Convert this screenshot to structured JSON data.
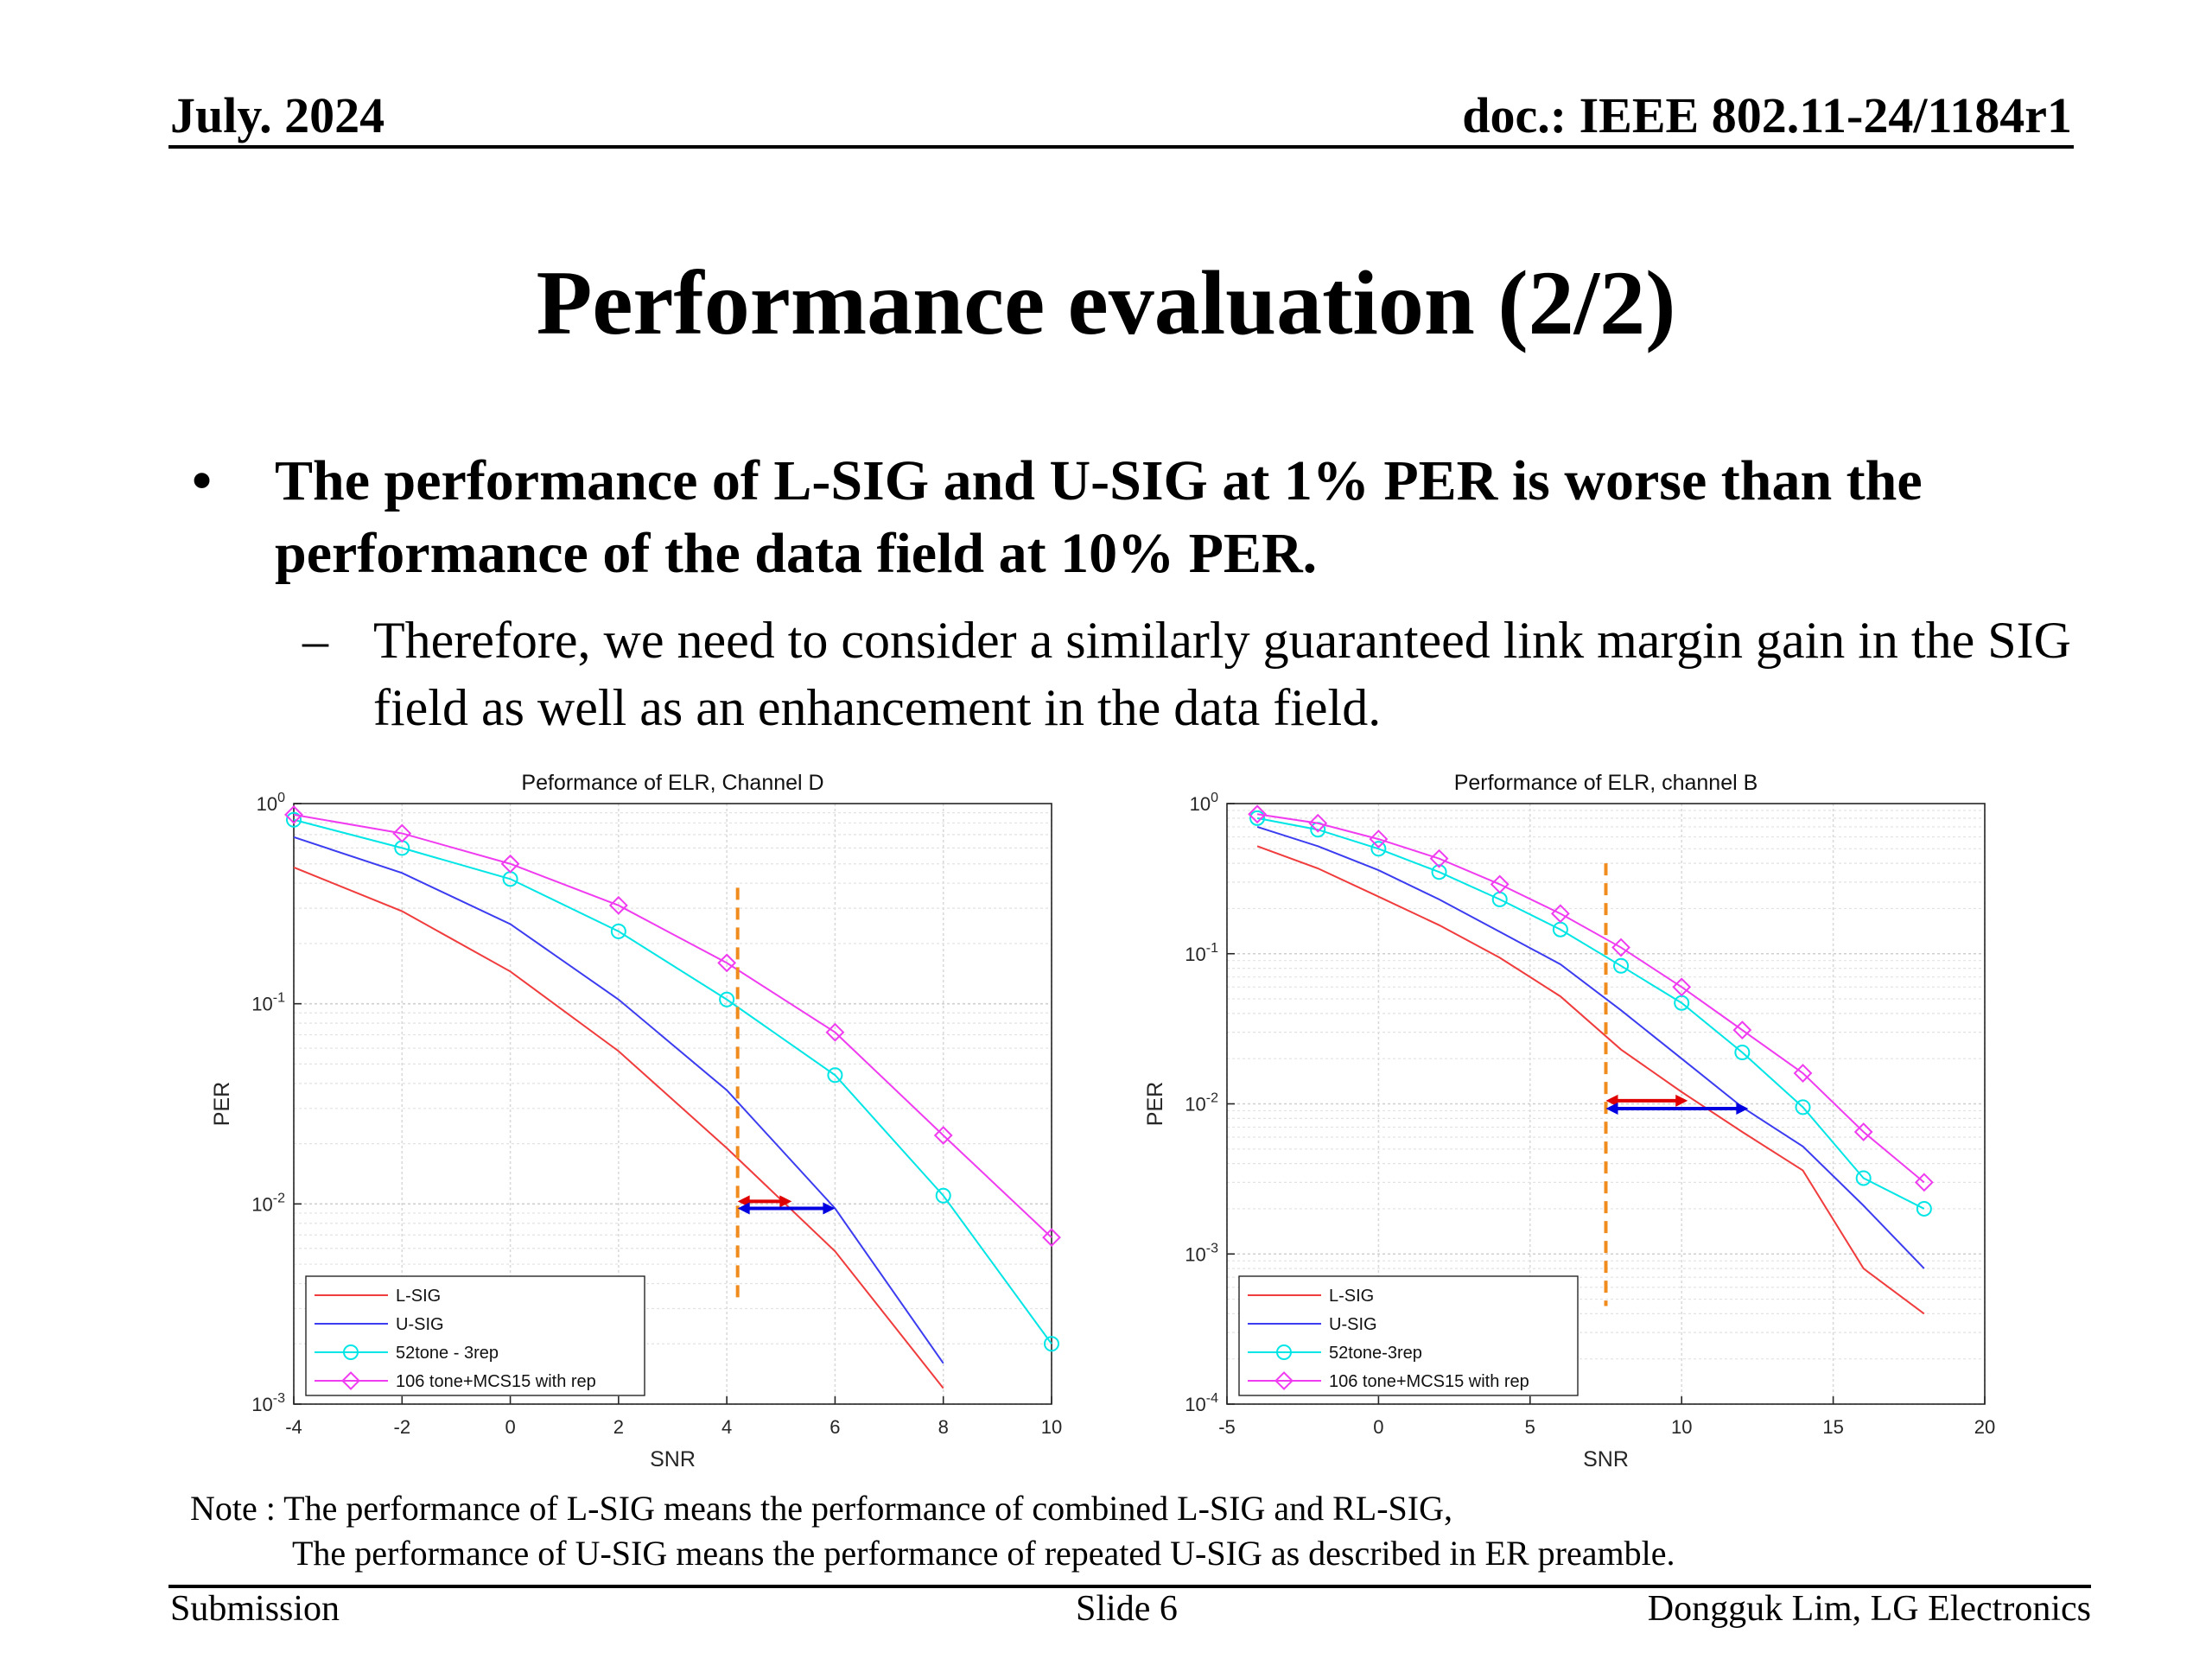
{
  "header": {
    "date": "July. 2024",
    "doc": "doc.: IEEE 802.11-24/1184r1"
  },
  "title": "Performance evaluation (2/2)",
  "bullets": {
    "main": "The performance of L-SIG and U-SIG at 1% PER is worse than the performance of the data field at 10% PER.",
    "sub": "Therefore, we need to consider a similarly guaranteed link margin gain in the SIG field as well as an enhancement in the data field.",
    "bullet_glyph": "•",
    "dash_glyph": "–"
  },
  "note": {
    "line1": "Note : The performance of L-SIG means the performance of combined L-SIG and RL-SIG,",
    "line2": "The performance of U-SIG means the performance of repeated U-SIG as described in ER preamble."
  },
  "footer": {
    "left": "Submission",
    "center": "Slide 6",
    "right": "Dongguk Lim, LG Electronics"
  },
  "colors": {
    "lsig": "#f03c3c",
    "usig": "#3c3cf0",
    "tone52": "#00e5e5",
    "tone106": "#f03cf0",
    "vline": "#f08c1e",
    "red_arrow": "#e00000",
    "blue_arrow": "#0000e0"
  },
  "chart_data": [
    {
      "type": "line",
      "title": "Peformance of ELR, Channel D",
      "xlabel": "SNR",
      "ylabel": "PER",
      "xlim": [
        -4,
        10
      ],
      "xticks": [
        -4,
        -2,
        0,
        2,
        4,
        6,
        8,
        10
      ],
      "ylim": [
        0.001,
        1
      ],
      "yscale": "log",
      "yticks": [
        {
          "base": "10",
          "exp": "0",
          "value": 1
        },
        {
          "base": "10",
          "exp": "-1",
          "value": 0.1
        },
        {
          "base": "10",
          "exp": "-2",
          "value": 0.01
        },
        {
          "base": "10",
          "exp": "-3",
          "value": 0.001
        }
      ],
      "grid": true,
      "legend_position": "bottom-left",
      "series": [
        {
          "name": "L-SIG",
          "color": "#f03c3c",
          "marker": "none",
          "x": [
            -4,
            -2,
            0,
            2,
            4,
            6,
            8
          ],
          "y": [
            0.48,
            0.29,
            0.145,
            0.058,
            0.019,
            0.0058,
            0.0012
          ]
        },
        {
          "name": "U-SIG",
          "color": "#3c3cf0",
          "marker": "none",
          "x": [
            -4,
            -2,
            0,
            2,
            4,
            6,
            8
          ],
          "y": [
            0.68,
            0.45,
            0.25,
            0.105,
            0.037,
            0.0095,
            0.0016
          ]
        },
        {
          "name": "52tone - 3rep",
          "color": "#00e5e5",
          "marker": "circle",
          "x": [
            -4,
            -2,
            0,
            2,
            4,
            6,
            8,
            10
          ],
          "y": [
            0.83,
            0.6,
            0.42,
            0.23,
            0.105,
            0.044,
            0.011,
            0.002
          ]
        },
        {
          "name": "106 tone+MCS15 with rep",
          "color": "#f03cf0",
          "marker": "diamond",
          "x": [
            -4,
            -2,
            0,
            2,
            4,
            6,
            8,
            10
          ],
          "y": [
            0.88,
            0.71,
            0.5,
            0.31,
            0.16,
            0.072,
            0.022,
            0.0068
          ]
        }
      ],
      "vline": {
        "x": 4.2,
        "y_from": 0.0032,
        "y_to": 0.38
      },
      "arrows": [
        {
          "color": "#e00000",
          "y": 0.0103,
          "x_from": 4.2,
          "x_to": 5.2
        },
        {
          "color": "#0000e0",
          "y": 0.0095,
          "x_from": 4.2,
          "x_to": 6.0
        }
      ]
    },
    {
      "type": "line",
      "title": "Performance of ELR, channel B",
      "xlabel": "SNR",
      "ylabel": "PER",
      "xlim": [
        -5,
        20
      ],
      "xticks": [
        -5,
        0,
        5,
        10,
        15,
        20
      ],
      "ylim": [
        0.0001,
        1
      ],
      "yscale": "log",
      "yticks": [
        {
          "base": "10",
          "exp": "0",
          "value": 1
        },
        {
          "base": "10",
          "exp": "-1",
          "value": 0.1
        },
        {
          "base": "10",
          "exp": "-2",
          "value": 0.01
        },
        {
          "base": "10",
          "exp": "-3",
          "value": 0.001
        },
        {
          "base": "10",
          "exp": "-4",
          "value": 0.0001
        }
      ],
      "grid": true,
      "legend_position": "bottom-left",
      "series": [
        {
          "name": "L-SIG",
          "color": "#f03c3c",
          "marker": "none",
          "x": [
            -4,
            -2,
            0,
            2,
            4,
            6,
            8,
            10,
            12,
            14,
            16,
            18
          ],
          "y": [
            0.52,
            0.37,
            0.24,
            0.155,
            0.094,
            0.052,
            0.023,
            0.012,
            0.0065,
            0.0036,
            0.0008,
            0.0004
          ]
        },
        {
          "name": "U-SIG",
          "color": "#3c3cf0",
          "marker": "none",
          "x": [
            -4,
            -2,
            0,
            2,
            4,
            6,
            8,
            10,
            12,
            14,
            16,
            18
          ],
          "y": [
            0.7,
            0.52,
            0.36,
            0.23,
            0.14,
            0.085,
            0.042,
            0.02,
            0.0095,
            0.0052,
            0.0021,
            0.0008
          ]
        },
        {
          "name": "52tone-3rep",
          "color": "#00e5e5",
          "marker": "circle",
          "x": [
            -4,
            -2,
            0,
            2,
            4,
            6,
            8,
            10,
            12,
            14,
            16,
            18
          ],
          "y": [
            0.8,
            0.67,
            0.5,
            0.35,
            0.23,
            0.145,
            0.083,
            0.047,
            0.022,
            0.0095,
            0.0032,
            0.002
          ]
        },
        {
          "name": "106 tone+MCS15 with rep",
          "color": "#f03cf0",
          "marker": "diamond",
          "x": [
            -4,
            -2,
            0,
            2,
            4,
            6,
            8,
            10,
            12,
            14,
            16,
            18
          ],
          "y": [
            0.85,
            0.74,
            0.58,
            0.43,
            0.29,
            0.185,
            0.11,
            0.06,
            0.031,
            0.016,
            0.0065,
            0.003
          ]
        }
      ],
      "vline": {
        "x": 7.5,
        "y_from": 0.00045,
        "y_to": 0.4
      },
      "arrows": [
        {
          "color": "#e00000",
          "y": 0.0105,
          "x_from": 7.5,
          "x_to": 10.2
        },
        {
          "color": "#0000e0",
          "y": 0.0093,
          "x_from": 7.5,
          "x_to": 12.2
        }
      ]
    }
  ]
}
